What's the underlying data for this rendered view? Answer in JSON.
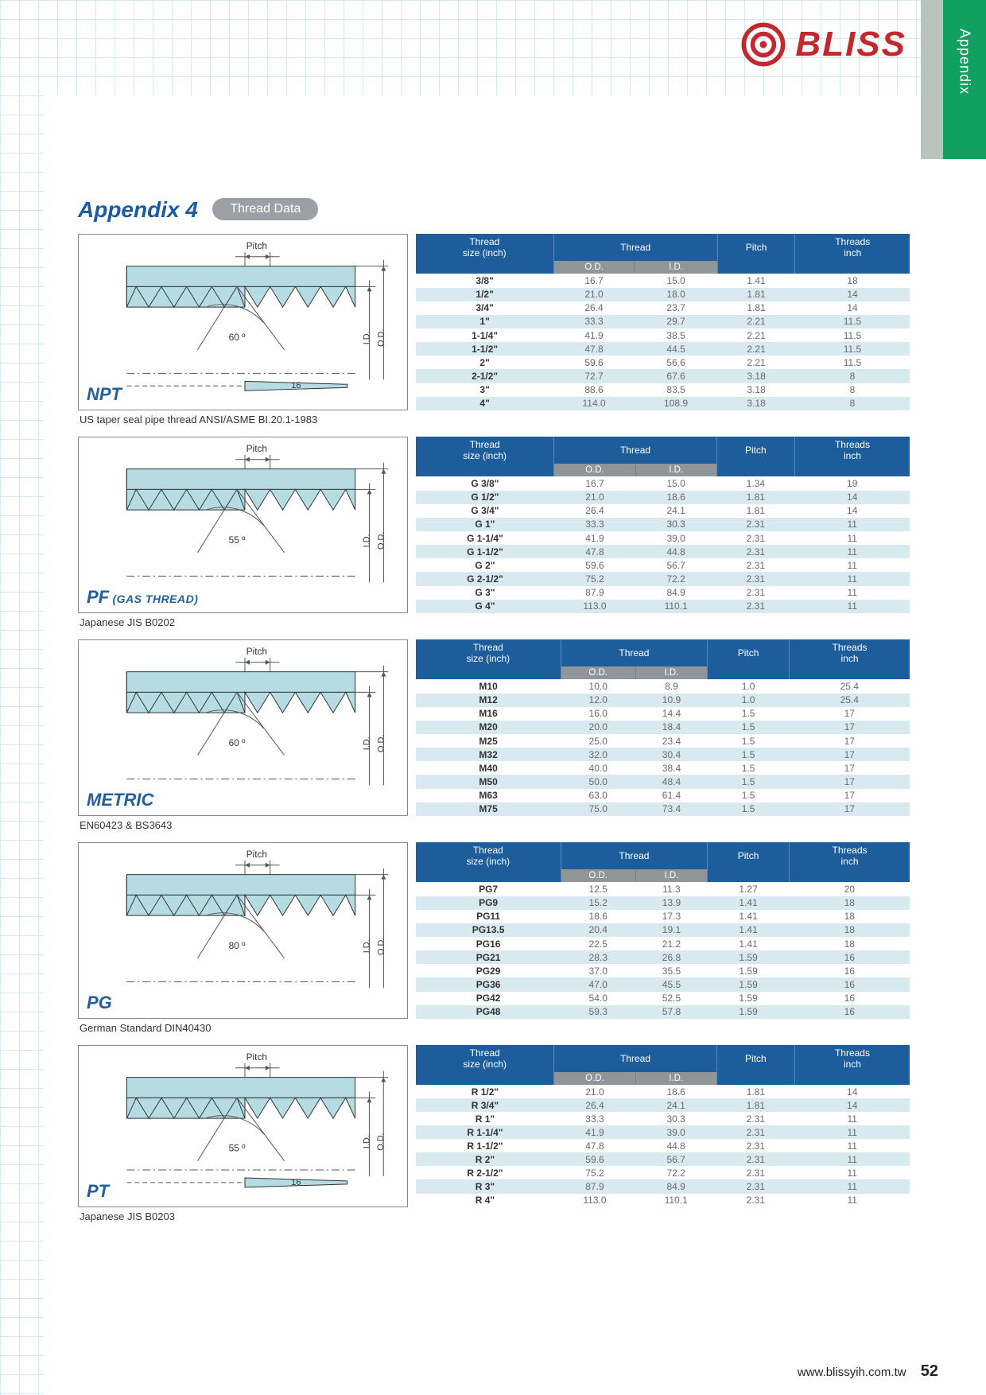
{
  "side_tab": "Appendix",
  "brand": "BLISS",
  "appendix": {
    "title": "Appendix 4",
    "pill": "Thread Data"
  },
  "headers": {
    "c1a": "Thread",
    "c1b": "size (inch)",
    "c2": "Thread",
    "c2a": "O.D.",
    "c2b": "I.D.",
    "c3": "Pitch",
    "c4a": "Threads",
    "c4b": "inch"
  },
  "diagram_labels": {
    "pitch": "Pitch",
    "id": "I.D.",
    "od": "O.D."
  },
  "sections": [
    {
      "name": "NPT",
      "sub": "",
      "angle": "60 º",
      "taper": "16",
      "desc": "US taper seal pipe thread ANSI/ASME BI.20.1-1983",
      "rows": [
        [
          "3/8\"",
          "16.7",
          "15.0",
          "1.41",
          "18"
        ],
        [
          "1/2\"",
          "21.0",
          "18.0",
          "1.81",
          "14"
        ],
        [
          "3/4\"",
          "26.4",
          "23.7",
          "1.81",
          "14"
        ],
        [
          "1\"",
          "33.3",
          "29.7",
          "2.21",
          "11.5"
        ],
        [
          "1-1/4\"",
          "41.9",
          "38.5",
          "2.21",
          "11.5"
        ],
        [
          "1-1/2\"",
          "47.8",
          "44.5",
          "2.21",
          "11.5"
        ],
        [
          "2\"",
          "59.6",
          "56.6",
          "2.21",
          "11.5"
        ],
        [
          "2-1/2\"",
          "72.7",
          "67.6",
          "3.18",
          "8"
        ],
        [
          "3\"",
          "88.6",
          "83.5",
          "3.18",
          "8"
        ],
        [
          "4\"",
          "114.0",
          "108.9",
          "3.18",
          "8"
        ]
      ]
    },
    {
      "name": "PF",
      "sub": " (GAS THREAD)",
      "angle": "55 º",
      "taper": "",
      "desc": "Japanese JIS B0202",
      "rows": [
        [
          "G 3/8\"",
          "16.7",
          "15.0",
          "1.34",
          "19"
        ],
        [
          "G 1/2\"",
          "21.0",
          "18.6",
          "1.81",
          "14"
        ],
        [
          "G 3/4\"",
          "26.4",
          "24.1",
          "1.81",
          "14"
        ],
        [
          "G 1\"",
          "33.3",
          "30.3",
          "2.31",
          "11"
        ],
        [
          "G 1-1/4\"",
          "41.9",
          "39.0",
          "2.31",
          "11"
        ],
        [
          "G 1-1/2\"",
          "47.8",
          "44.8",
          "2.31",
          "11"
        ],
        [
          "G 2\"",
          "59.6",
          "56.7",
          "2.31",
          "11"
        ],
        [
          "G 2-1/2\"",
          "75.2",
          "72.2",
          "2.31",
          "11"
        ],
        [
          "G 3\"",
          "87.9",
          "84.9",
          "2.31",
          "11"
        ],
        [
          "G 4\"",
          "113.0",
          "110.1",
          "2.31",
          "11"
        ]
      ]
    },
    {
      "name": "METRIC",
      "sub": "",
      "angle": "60 º",
      "taper": "",
      "desc": "EN60423 & BS3643",
      "rows": [
        [
          "M10",
          "10.0",
          "8.9",
          "1.0",
          "25.4"
        ],
        [
          "M12",
          "12.0",
          "10.9",
          "1.0",
          "25.4"
        ],
        [
          "M16",
          "16.0",
          "14.4",
          "1.5",
          "17"
        ],
        [
          "M20",
          "20.0",
          "18.4",
          "1.5",
          "17"
        ],
        [
          "M25",
          "25.0",
          "23.4",
          "1.5",
          "17"
        ],
        [
          "M32",
          "32.0",
          "30.4",
          "1.5",
          "17"
        ],
        [
          "M40",
          "40.0",
          "38.4",
          "1.5",
          "17"
        ],
        [
          "M50",
          "50.0",
          "48.4",
          "1.5",
          "17"
        ],
        [
          "M63",
          "63.0",
          "61.4",
          "1.5",
          "17"
        ],
        [
          "M75",
          "75.0",
          "73.4",
          "1.5",
          "17"
        ]
      ]
    },
    {
      "name": "PG",
      "sub": "",
      "angle": "80 º",
      "taper": "",
      "desc": "German Standard DIN40430",
      "rows": [
        [
          "PG7",
          "12.5",
          "11.3",
          "1.27",
          "20"
        ],
        [
          "PG9",
          "15.2",
          "13.9",
          "1.41",
          "18"
        ],
        [
          "PG11",
          "18.6",
          "17.3",
          "1.41",
          "18"
        ],
        [
          "PG13.5",
          "20.4",
          "19.1",
          "1.41",
          "18"
        ],
        [
          "PG16",
          "22.5",
          "21.2",
          "1.41",
          "18"
        ],
        [
          "PG21",
          "28.3",
          "26.8",
          "1.59",
          "16"
        ],
        [
          "PG29",
          "37.0",
          "35.5",
          "1.59",
          "16"
        ],
        [
          "PG36",
          "47.0",
          "45.5",
          "1.59",
          "16"
        ],
        [
          "PG42",
          "54.0",
          "52.5",
          "1.59",
          "16"
        ],
        [
          "PG48",
          "59.3",
          "57.8",
          "1.59",
          "16"
        ]
      ]
    },
    {
      "name": "PT",
      "sub": "",
      "angle": "55 º",
      "taper": "16",
      "desc": "Japanese JIS B0203",
      "rows": [
        [
          "R 1/2\"",
          "21.0",
          "18.6",
          "1.81",
          "14"
        ],
        [
          "R 3/4\"",
          "26.4",
          "24.1",
          "1.81",
          "14"
        ],
        [
          "R 1\"",
          "33.3",
          "30.3",
          "2.31",
          "11"
        ],
        [
          "R 1-1/4\"",
          "41.9",
          "39.0",
          "2.31",
          "11"
        ],
        [
          "R 1-1/2\"",
          "47.8",
          "44.8",
          "2.31",
          "11"
        ],
        [
          "R 2\"",
          "59.6",
          "56.7",
          "2.31",
          "11"
        ],
        [
          "R 2-1/2\"",
          "75.2",
          "72.2",
          "2.31",
          "11"
        ],
        [
          "R 3\"",
          "87.9",
          "84.9",
          "2.31",
          "11"
        ],
        [
          "R 4\"",
          "113.0",
          "110.1",
          "2.31",
          "11"
        ]
      ]
    }
  ],
  "footer": {
    "url": "www.blissyih.com.tw",
    "page": "52"
  }
}
